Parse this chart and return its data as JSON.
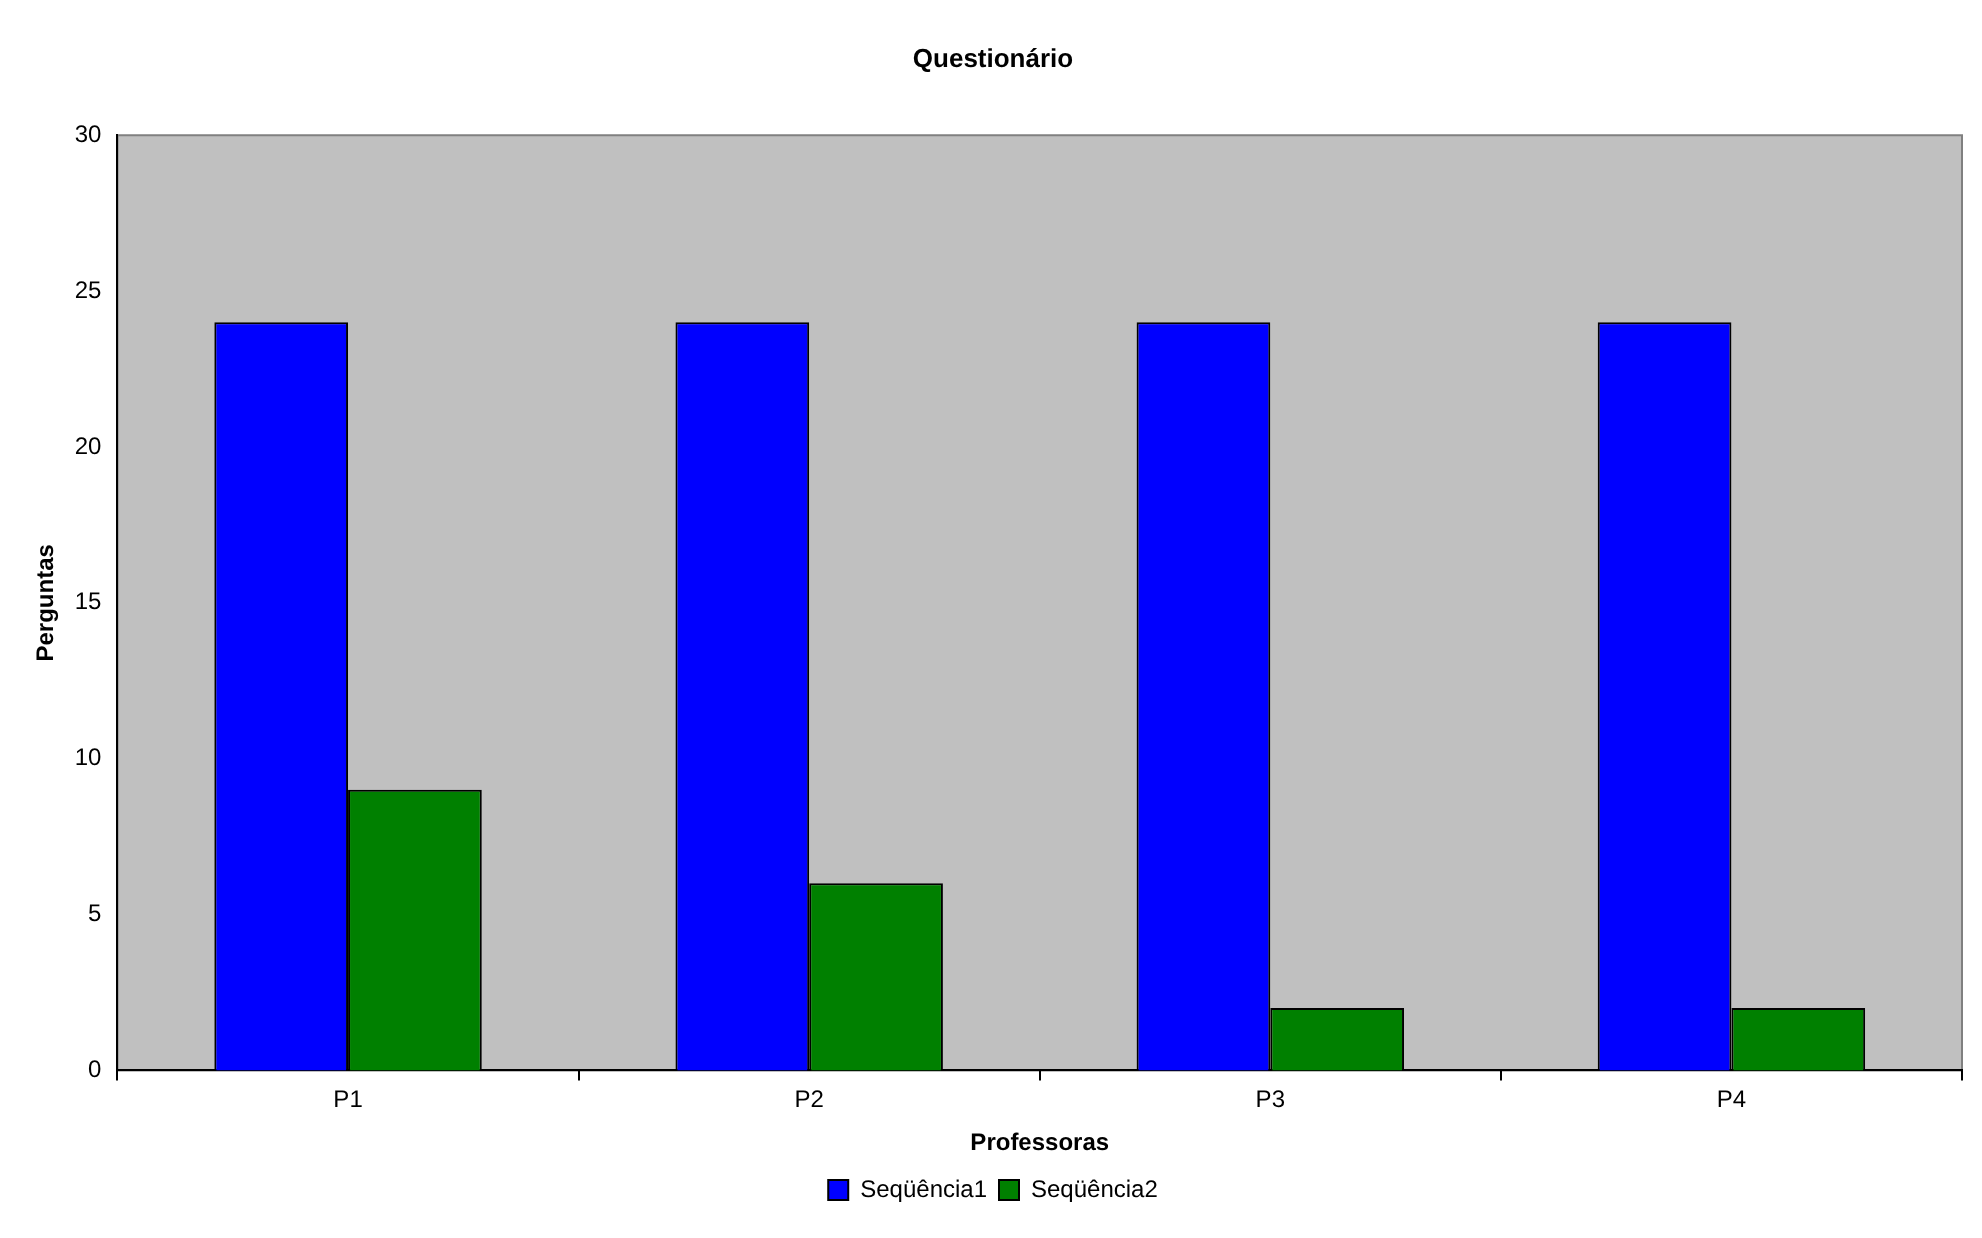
{
  "chart_data": {
    "type": "bar",
    "title": "Questionário",
    "xlabel": "Professoras",
    "ylabel": "Perguntas",
    "categories": [
      "P1",
      "P2",
      "P3",
      "P4"
    ],
    "series": [
      {
        "name": "Seqüência1",
        "color": "#0000ff",
        "values": [
          24,
          24,
          24,
          24
        ]
      },
      {
        "name": "Seqüência2",
        "color": "#008000",
        "values": [
          9,
          6,
          2,
          2
        ]
      }
    ],
    "ylim": [
      0,
      30
    ],
    "yticks": [
      0,
      5,
      10,
      15,
      20,
      25,
      30
    ],
    "legend": "bottom"
  }
}
